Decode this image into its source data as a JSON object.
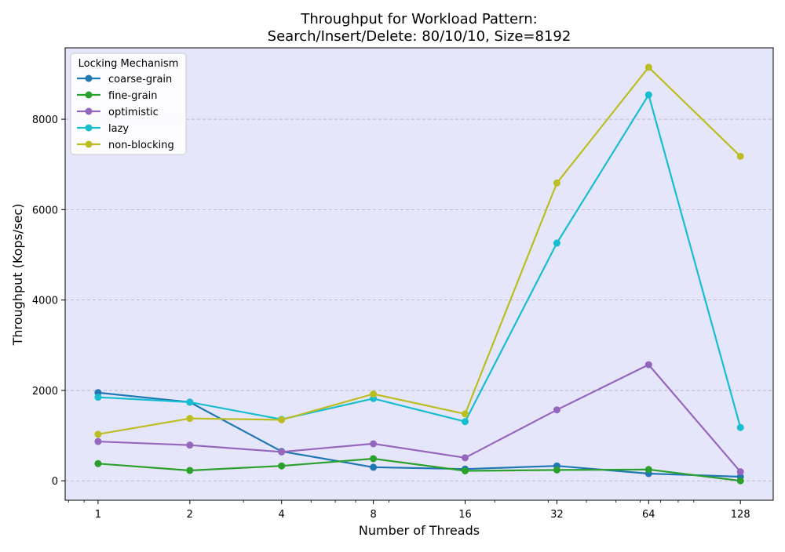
{
  "chart_data": {
    "type": "line",
    "title_line1": "Throughput for Workload Pattern:",
    "title_line2": "Search/Insert/Delete: 80/10/10, Size=8192",
    "xlabel": "Number of Threads",
    "ylabel": "Throughput (Kops/sec)",
    "x": [
      1,
      2,
      4,
      8,
      16,
      32,
      64,
      128
    ],
    "x_tick_labels": [
      "1",
      "2",
      "4",
      "8",
      "16",
      "32",
      "64",
      "128"
    ],
    "x_scale": "log2",
    "xlim": [
      0.78,
      164
    ],
    "y_ticks": [
      0,
      2000,
      4000,
      6000,
      8000
    ],
    "y_tick_labels": [
      "0",
      "2000",
      "4000",
      "6000",
      "8000"
    ],
    "ylim": [
      -430,
      9580
    ],
    "grid": "horizontal, dashed",
    "plot_background": "#e6e6fa",
    "legend": {
      "title": "Locking Mechanism",
      "placement": "top-left"
    },
    "series": [
      {
        "name": "coarse-grain",
        "color": "#1f77b4",
        "values": [
          1950,
          1740,
          650,
          300,
          260,
          330,
          160,
          90
        ]
      },
      {
        "name": "fine-grain",
        "color": "#2ca02c",
        "values": [
          380,
          230,
          330,
          490,
          220,
          240,
          250,
          0
        ]
      },
      {
        "name": "optimistic",
        "color": "#9467bd",
        "values": [
          870,
          790,
          640,
          820,
          510,
          1570,
          2570,
          200
        ]
      },
      {
        "name": "lazy",
        "color": "#17becf",
        "values": [
          1850,
          1740,
          1360,
          1820,
          1310,
          5260,
          8540,
          1180
        ]
      },
      {
        "name": "non-blocking",
        "color": "#bcbd22",
        "values": [
          1030,
          1380,
          1350,
          1920,
          1480,
          6590,
          9150,
          7180
        ]
      }
    ]
  }
}
